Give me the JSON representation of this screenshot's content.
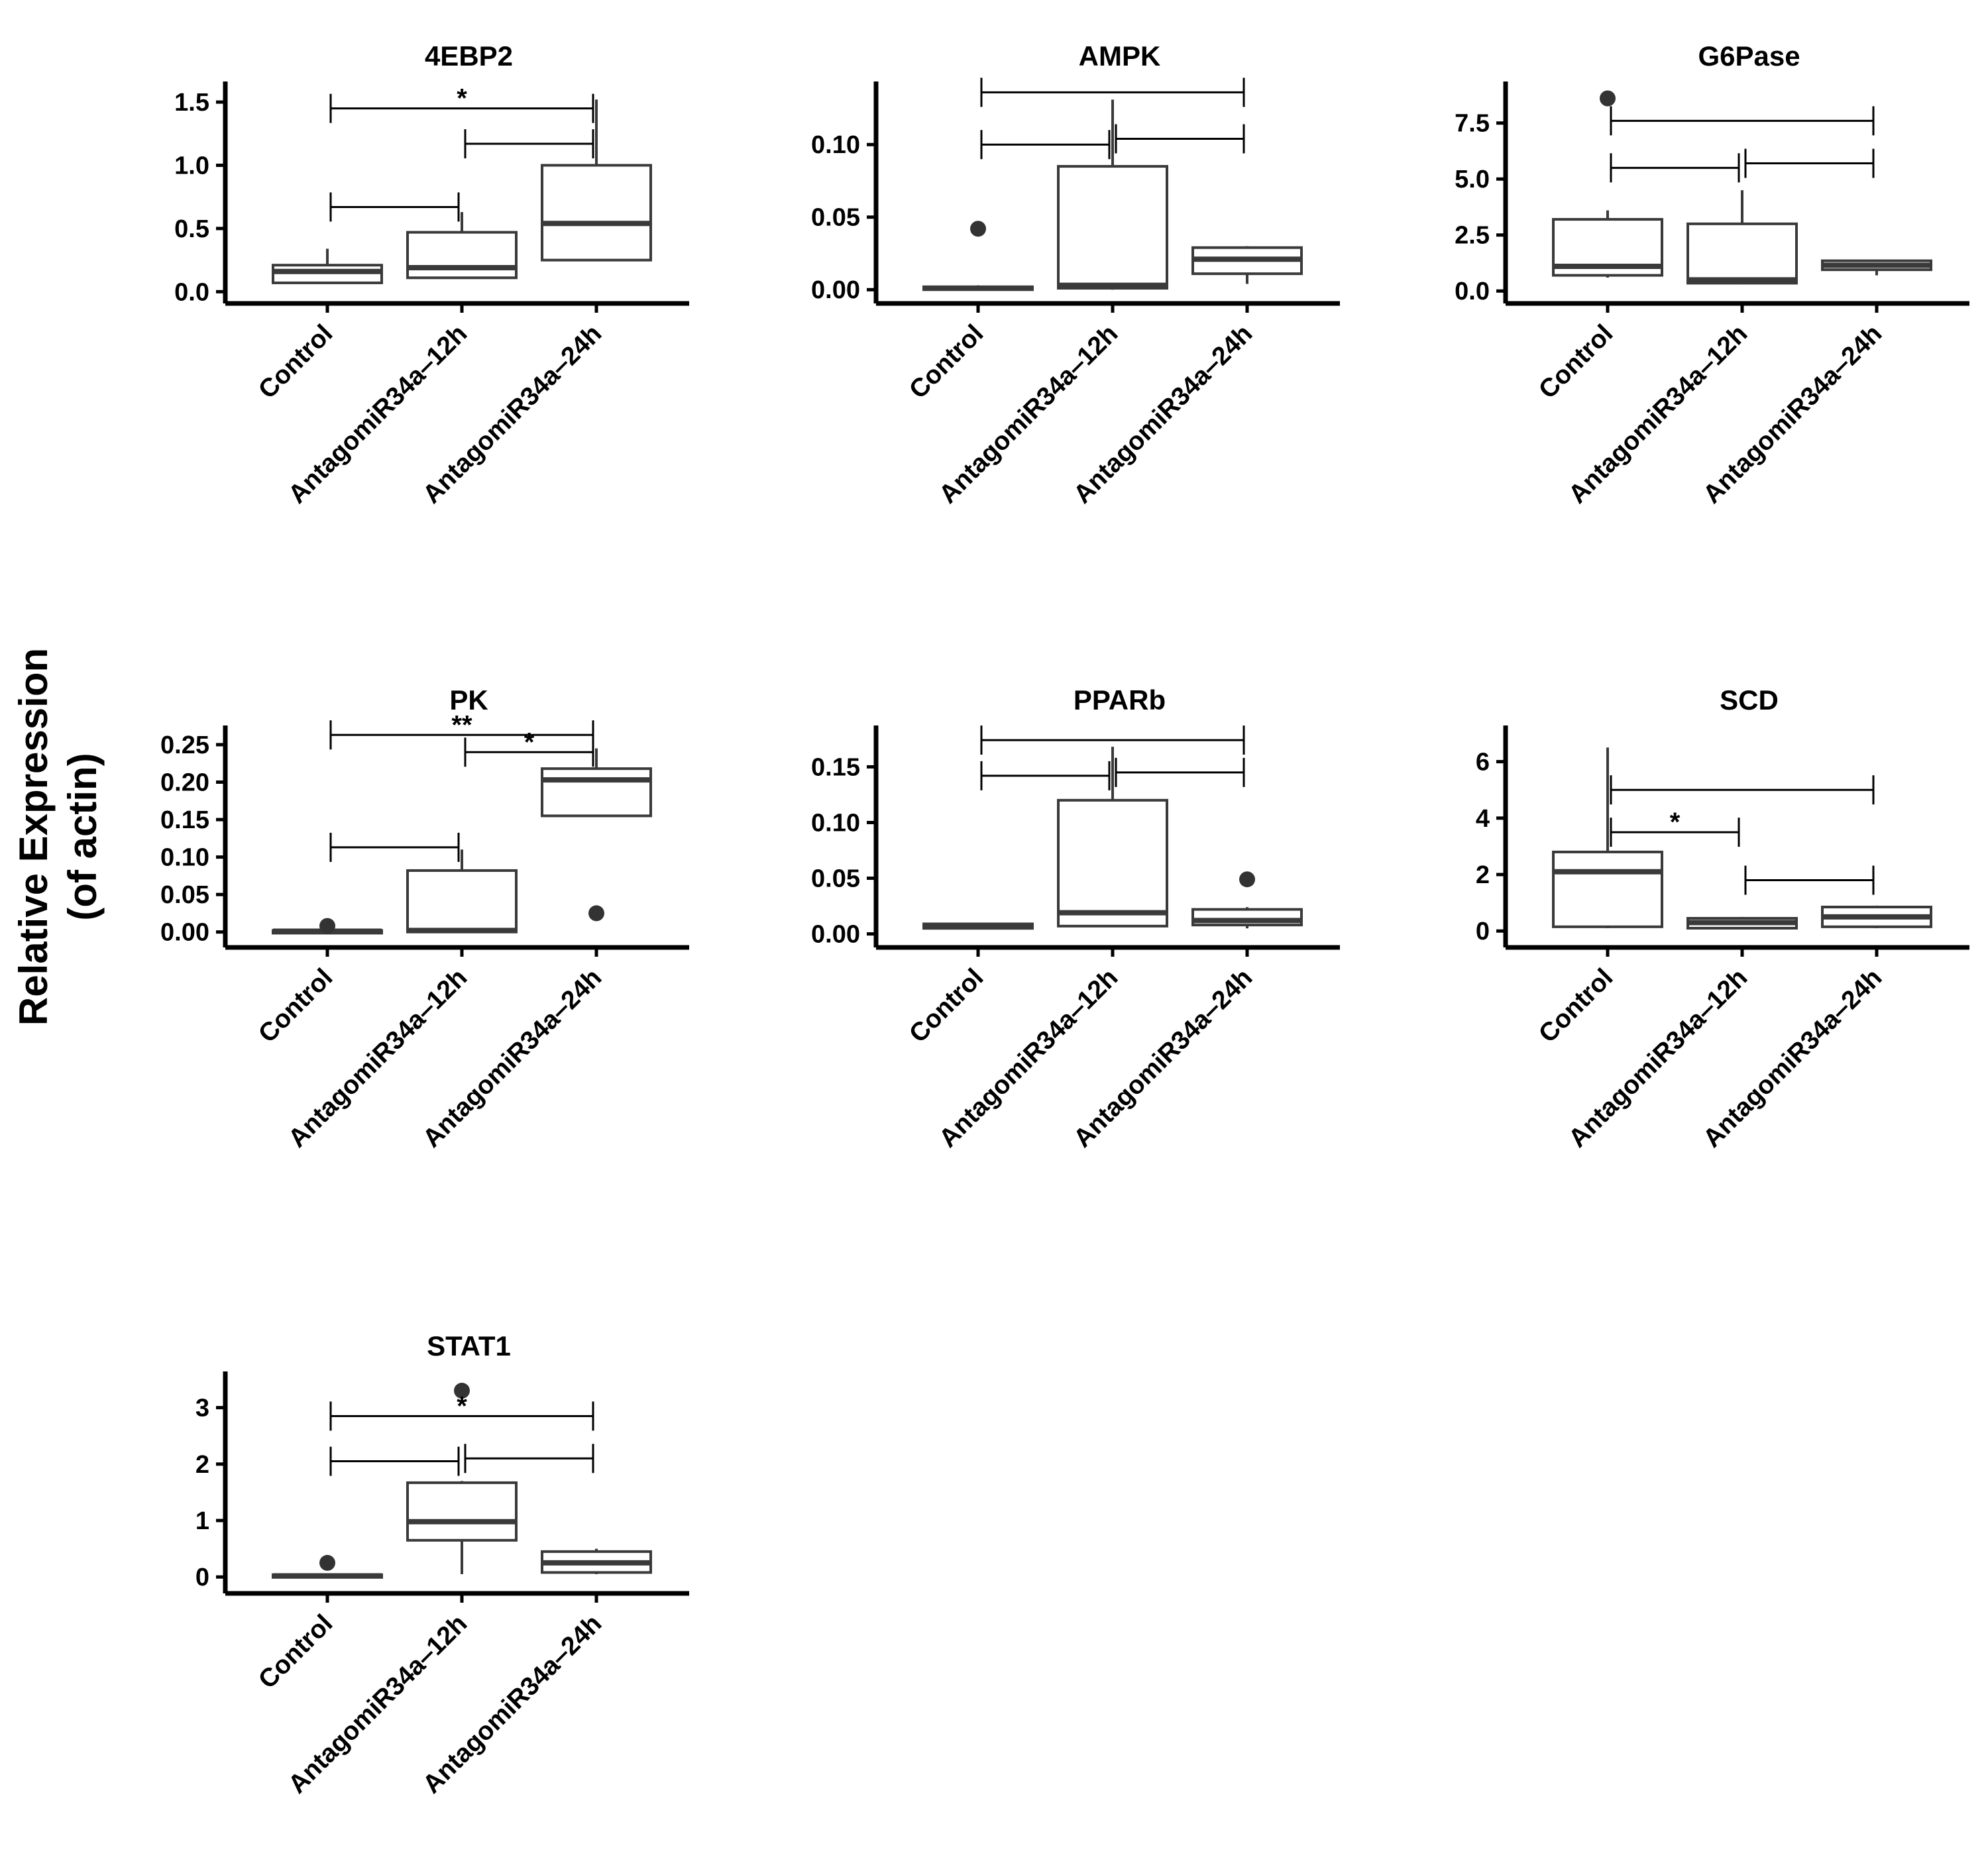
{
  "y_axis_label": {
    "line1": "Relative Expression",
    "line2": "(of actin)"
  },
  "colors": {
    "ink": "#000000",
    "box_line": "#3a3a3a",
    "median": "#3a3a3a",
    "outlier": "#333333",
    "background": "#ffffff"
  },
  "chart_data": [
    {
      "type": "box",
      "title": "4EBP2",
      "categories": [
        "Control",
        "AntagomiR34a‒12h",
        "AntagomiR34a‒24h"
      ],
      "ylim": [
        -0.03,
        1.6
      ],
      "yticks": [
        0.0,
        0.5,
        1.0,
        1.5
      ],
      "ytick_labels": [
        "0.0",
        "0.5",
        "1.0",
        "1.5"
      ],
      "boxes": [
        {
          "whisker_low": 0.07,
          "q1": 0.07,
          "median": 0.16,
          "q3": 0.21,
          "whisker_high": 0.34,
          "outliers": []
        },
        {
          "whisker_low": 0.11,
          "q1": 0.11,
          "median": 0.19,
          "q3": 0.47,
          "whisker_high": 0.63,
          "outliers": []
        },
        {
          "whisker_low": 0.25,
          "q1": 0.25,
          "median": 0.54,
          "q3": 1.0,
          "whisker_high": 1.52,
          "outliers": []
        }
      ],
      "brackets": [
        {
          "from": 0,
          "to": 1,
          "y": 0.67,
          "label": ""
        },
        {
          "from": 1,
          "to": 2,
          "y": 1.17,
          "label": ""
        },
        {
          "from": 0,
          "to": 2,
          "y": 1.45,
          "label": "*"
        }
      ]
    },
    {
      "type": "box",
      "title": "AMPK",
      "categories": [
        "Control",
        "AntagomiR34a‒12h",
        "AntagomiR34a‒24h"
      ],
      "ylim": [
        -0.004,
        0.138
      ],
      "yticks": [
        0.0,
        0.05,
        0.1
      ],
      "ytick_labels": [
        "0.00",
        "0.05",
        "0.10"
      ],
      "boxes": [
        {
          "whisker_low": 0.0,
          "q1": 0.0,
          "median": 0.001,
          "q3": 0.002,
          "whisker_high": 0.003,
          "outliers": [
            0.042
          ]
        },
        {
          "whisker_low": 0.0,
          "q1": 0.001,
          "median": 0.003,
          "q3": 0.085,
          "whisker_high": 0.131,
          "outliers": []
        },
        {
          "whisker_low": 0.004,
          "q1": 0.011,
          "median": 0.021,
          "q3": 0.029,
          "whisker_high": 0.03,
          "outliers": []
        }
      ],
      "brackets": [
        {
          "from": 0,
          "to": 1,
          "y": 0.1,
          "label": ""
        },
        {
          "from": 1,
          "to": 2,
          "y": 0.104,
          "label": ""
        },
        {
          "from": 0,
          "to": 2,
          "y": 0.136,
          "label": ""
        }
      ]
    },
    {
      "type": "box",
      "title": "G6Pase",
      "categories": [
        "Control",
        "AntagomiR34a‒12h",
        "AntagomiR34a‒24h"
      ],
      "ylim": [
        -0.2,
        9.0
      ],
      "yticks": [
        0.0,
        2.5,
        5.0,
        7.5
      ],
      "ytick_labels": [
        "0.0",
        "2.5",
        "5.0",
        "7.5"
      ],
      "boxes": [
        {
          "whisker_low": 0.6,
          "q1": 0.7,
          "median": 1.1,
          "q3": 3.2,
          "whisker_high": 3.6,
          "outliers": [
            8.6
          ]
        },
        {
          "whisker_low": 0.3,
          "q1": 0.35,
          "median": 0.5,
          "q3": 3.0,
          "whisker_high": 4.5,
          "outliers": []
        },
        {
          "whisker_low": 0.7,
          "q1": 0.95,
          "median": 1.15,
          "q3": 1.35,
          "whisker_high": 1.4,
          "outliers": []
        }
      ],
      "brackets": [
        {
          "from": 0,
          "to": 1,
          "y": 5.5,
          "label": ""
        },
        {
          "from": 1,
          "to": 2,
          "y": 5.7,
          "label": ""
        },
        {
          "from": 0,
          "to": 2,
          "y": 7.6,
          "label": ""
        }
      ]
    },
    {
      "type": "box",
      "title": "PK",
      "categories": [
        "Control",
        "AntagomiR34a‒12h",
        "AntagomiR34a‒24h"
      ],
      "ylim": [
        -0.01,
        0.265
      ],
      "yticks": [
        0.0,
        0.05,
        0.1,
        0.15,
        0.2,
        0.25
      ],
      "ytick_labels": [
        "0.00",
        "0.05",
        "0.10",
        "0.15",
        "0.20",
        "0.25"
      ],
      "boxes": [
        {
          "whisker_low": 0.0,
          "q1": 0.0,
          "median": 0.001,
          "q3": 0.002,
          "whisker_high": 0.003,
          "outliers": [
            0.008
          ]
        },
        {
          "whisker_low": 0.0,
          "q1": 0.0,
          "median": 0.002,
          "q3": 0.082,
          "whisker_high": 0.11,
          "outliers": []
        },
        {
          "whisker_low": 0.155,
          "q1": 0.155,
          "median": 0.203,
          "q3": 0.218,
          "whisker_high": 0.245,
          "outliers": [
            0.025
          ]
        }
      ],
      "brackets": [
        {
          "from": 0,
          "to": 1,
          "y": 0.113,
          "label": ""
        },
        {
          "from": 1,
          "to": 2,
          "y": 0.24,
          "label": "*"
        },
        {
          "from": 0,
          "to": 2,
          "y": 0.263,
          "label": "**"
        }
      ]
    },
    {
      "type": "box",
      "title": "PPARb",
      "categories": [
        "Control",
        "AntagomiR34a‒12h",
        "AntagomiR34a‒24h"
      ],
      "ylim": [
        -0.005,
        0.18
      ],
      "yticks": [
        0.0,
        0.05,
        0.1,
        0.15
      ],
      "ytick_labels": [
        "0.00",
        "0.05",
        "0.10",
        "0.15"
      ],
      "boxes": [
        {
          "whisker_low": 0.005,
          "q1": 0.005,
          "median": 0.007,
          "q3": 0.009,
          "whisker_high": 0.01,
          "outliers": []
        },
        {
          "whisker_low": 0.006,
          "q1": 0.007,
          "median": 0.019,
          "q3": 0.12,
          "whisker_high": 0.168,
          "outliers": []
        },
        {
          "whisker_low": 0.005,
          "q1": 0.008,
          "median": 0.012,
          "q3": 0.022,
          "whisker_high": 0.024,
          "outliers": [
            0.049
          ]
        }
      ],
      "brackets": [
        {
          "from": 0,
          "to": 1,
          "y": 0.142,
          "label": ""
        },
        {
          "from": 1,
          "to": 2,
          "y": 0.145,
          "label": ""
        },
        {
          "from": 0,
          "to": 2,
          "y": 0.174,
          "label": ""
        }
      ]
    },
    {
      "type": "box",
      "title": "SCD",
      "categories": [
        "Control",
        "AntagomiR34a‒12h",
        "AntagomiR34a‒24h"
      ],
      "ylim": [
        -0.3,
        7.0
      ],
      "yticks": [
        0,
        2,
        4,
        6
      ],
      "ytick_labels": [
        "0",
        "2",
        "4",
        "6"
      ],
      "boxes": [
        {
          "whisker_low": 0.1,
          "q1": 0.15,
          "median": 2.1,
          "q3": 2.8,
          "whisker_high": 6.5,
          "outliers": []
        },
        {
          "whisker_low": 0.1,
          "q1": 0.1,
          "median": 0.3,
          "q3": 0.45,
          "whisker_high": 0.5,
          "outliers": []
        },
        {
          "whisker_low": 0.1,
          "q1": 0.15,
          "median": 0.5,
          "q3": 0.85,
          "whisker_high": 0.9,
          "outliers": []
        }
      ],
      "brackets": [
        {
          "from": 0,
          "to": 1,
          "y": 3.5,
          "label": "*"
        },
        {
          "from": 1,
          "to": 2,
          "y": 1.8,
          "label": ""
        },
        {
          "from": 0,
          "to": 2,
          "y": 5.0,
          "label": ""
        }
      ]
    },
    {
      "type": "box",
      "title": "STAT1",
      "categories": [
        "Control",
        "AntagomiR34a‒12h",
        "AntagomiR34a‒24h"
      ],
      "ylim": [
        -0.15,
        3.5
      ],
      "yticks": [
        0,
        1,
        2,
        3
      ],
      "ytick_labels": [
        "0",
        "1",
        "2",
        "3"
      ],
      "boxes": [
        {
          "whisker_low": 0.0,
          "q1": 0.0,
          "median": 0.02,
          "q3": 0.04,
          "whisker_high": 0.05,
          "outliers": [
            0.25
          ]
        },
        {
          "whisker_low": 0.05,
          "q1": 0.65,
          "median": 0.98,
          "q3": 1.67,
          "whisker_high": 1.7,
          "outliers": [
            3.3
          ]
        },
        {
          "whisker_low": 0.05,
          "q1": 0.08,
          "median": 0.25,
          "q3": 0.45,
          "whisker_high": 0.5,
          "outliers": []
        }
      ],
      "brackets": [
        {
          "from": 0,
          "to": 1,
          "y": 2.05,
          "label": ""
        },
        {
          "from": 1,
          "to": 2,
          "y": 2.1,
          "label": ""
        },
        {
          "from": 0,
          "to": 2,
          "y": 2.85,
          "label": "*"
        }
      ]
    }
  ]
}
